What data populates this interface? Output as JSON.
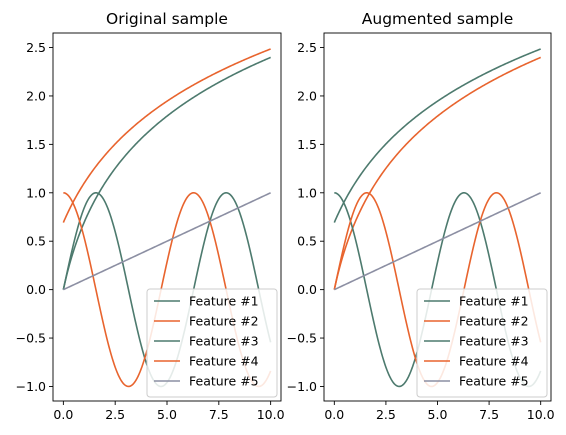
{
  "chart_data": [
    {
      "type": "line",
      "title": "Original sample",
      "xlim": [
        -0.5,
        10.5
      ],
      "ylim": [
        -1.15,
        2.65
      ],
      "xticks": [
        0,
        2.5,
        5,
        7.5,
        10
      ],
      "xtick_labels": [
        "0.0",
        "2.5",
        "5.0",
        "7.5",
        "10.0"
      ],
      "yticks": [
        -1.0,
        -0.5,
        0.0,
        0.5,
        1.0,
        1.5,
        2.0,
        2.5
      ],
      "ytick_labels": [
        "−1.0",
        "−0.5",
        "0.0",
        "0.5",
        "1.0",
        "1.5",
        "2.0",
        "2.5"
      ],
      "grid": false,
      "legend_position": "lower-right",
      "series": [
        {
          "name": "Feature #1",
          "color": "#4d7a6e",
          "function": "log1p(x)",
          "x": [
            0,
            1,
            2,
            3,
            4,
            5,
            6,
            7,
            8,
            9,
            10
          ],
          "y": [
            0,
            0.69,
            1.1,
            1.39,
            1.61,
            1.79,
            1.95,
            2.08,
            2.2,
            2.3,
            2.4
          ]
        },
        {
          "name": "Feature #2",
          "color": "#e8642e",
          "function": "log(x+2)",
          "x": [
            0,
            1,
            2,
            3,
            4,
            5,
            6,
            7,
            8,
            9,
            10
          ],
          "y": [
            0.69,
            1.1,
            1.39,
            1.61,
            1.79,
            1.95,
            2.08,
            2.2,
            2.3,
            2.4,
            2.48
          ]
        },
        {
          "name": "Feature #3",
          "color": "#4d7a6e",
          "function": "sin(x)",
          "x": [
            0,
            1,
            2,
            3,
            4,
            5,
            6,
            7,
            8,
            9,
            10
          ],
          "y": [
            0,
            0.84,
            0.91,
            0.14,
            -0.76,
            -0.96,
            -0.28,
            0.66,
            0.99,
            0.41,
            -0.54
          ]
        },
        {
          "name": "Feature #4",
          "color": "#e8642e",
          "function": "cos(x)",
          "x": [
            0,
            1,
            2,
            3,
            4,
            5,
            6,
            7,
            8,
            9,
            10
          ],
          "y": [
            1,
            0.54,
            -0.42,
            -0.99,
            -0.65,
            0.28,
            0.96,
            0.75,
            -0.15,
            -0.91,
            -0.84
          ]
        },
        {
          "name": "Feature #5",
          "color": "#8c8fa3",
          "function": "x/10",
          "x": [
            0,
            10
          ],
          "y": [
            0,
            1
          ]
        }
      ]
    },
    {
      "type": "line",
      "title": "Augmented sample",
      "xlim": [
        -0.5,
        10.5
      ],
      "ylim": [
        -1.15,
        2.65
      ],
      "xticks": [
        0,
        2.5,
        5,
        7.5,
        10
      ],
      "xtick_labels": [
        "0.0",
        "2.5",
        "5.0",
        "7.5",
        "10.0"
      ],
      "yticks": [
        -1.0,
        -0.5,
        0.0,
        0.5,
        1.0,
        1.5,
        2.0,
        2.5
      ],
      "ytick_labels": [
        "−1.0",
        "−0.5",
        "0.0",
        "0.5",
        "1.0",
        "1.5",
        "2.0",
        "2.5"
      ],
      "grid": false,
      "legend_position": "lower-right",
      "series": [
        {
          "name": "Feature #1",
          "color": "#4d7a6e",
          "function": "log(x+2)",
          "x": [
            0,
            1,
            2,
            3,
            4,
            5,
            6,
            7,
            8,
            9,
            10
          ],
          "y": [
            0.69,
            1.1,
            1.39,
            1.61,
            1.79,
            1.95,
            2.08,
            2.2,
            2.3,
            2.4,
            2.48
          ]
        },
        {
          "name": "Feature #2",
          "color": "#e8642e",
          "function": "log1p(x)",
          "x": [
            0,
            1,
            2,
            3,
            4,
            5,
            6,
            7,
            8,
            9,
            10
          ],
          "y": [
            0,
            0.69,
            1.1,
            1.39,
            1.61,
            1.79,
            1.95,
            2.08,
            2.2,
            2.3,
            2.4
          ]
        },
        {
          "name": "Feature #3",
          "color": "#4d7a6e",
          "function": "cos(x)",
          "x": [
            0,
            1,
            2,
            3,
            4,
            5,
            6,
            7,
            8,
            9,
            10
          ],
          "y": [
            1,
            0.54,
            -0.42,
            -0.99,
            -0.65,
            0.28,
            0.96,
            0.75,
            -0.15,
            -0.91,
            -0.84
          ]
        },
        {
          "name": "Feature #4",
          "color": "#e8642e",
          "function": "sin(x)",
          "x": [
            0,
            1,
            2,
            3,
            4,
            5,
            6,
            7,
            8,
            9,
            10
          ],
          "y": [
            0,
            0.84,
            0.91,
            0.14,
            -0.76,
            -0.96,
            -0.28,
            0.66,
            0.99,
            0.41,
            -0.54
          ]
        },
        {
          "name": "Feature #5",
          "color": "#8c8fa3",
          "function": "x/10",
          "x": [
            0,
            10
          ],
          "y": [
            0,
            1
          ]
        }
      ]
    }
  ]
}
